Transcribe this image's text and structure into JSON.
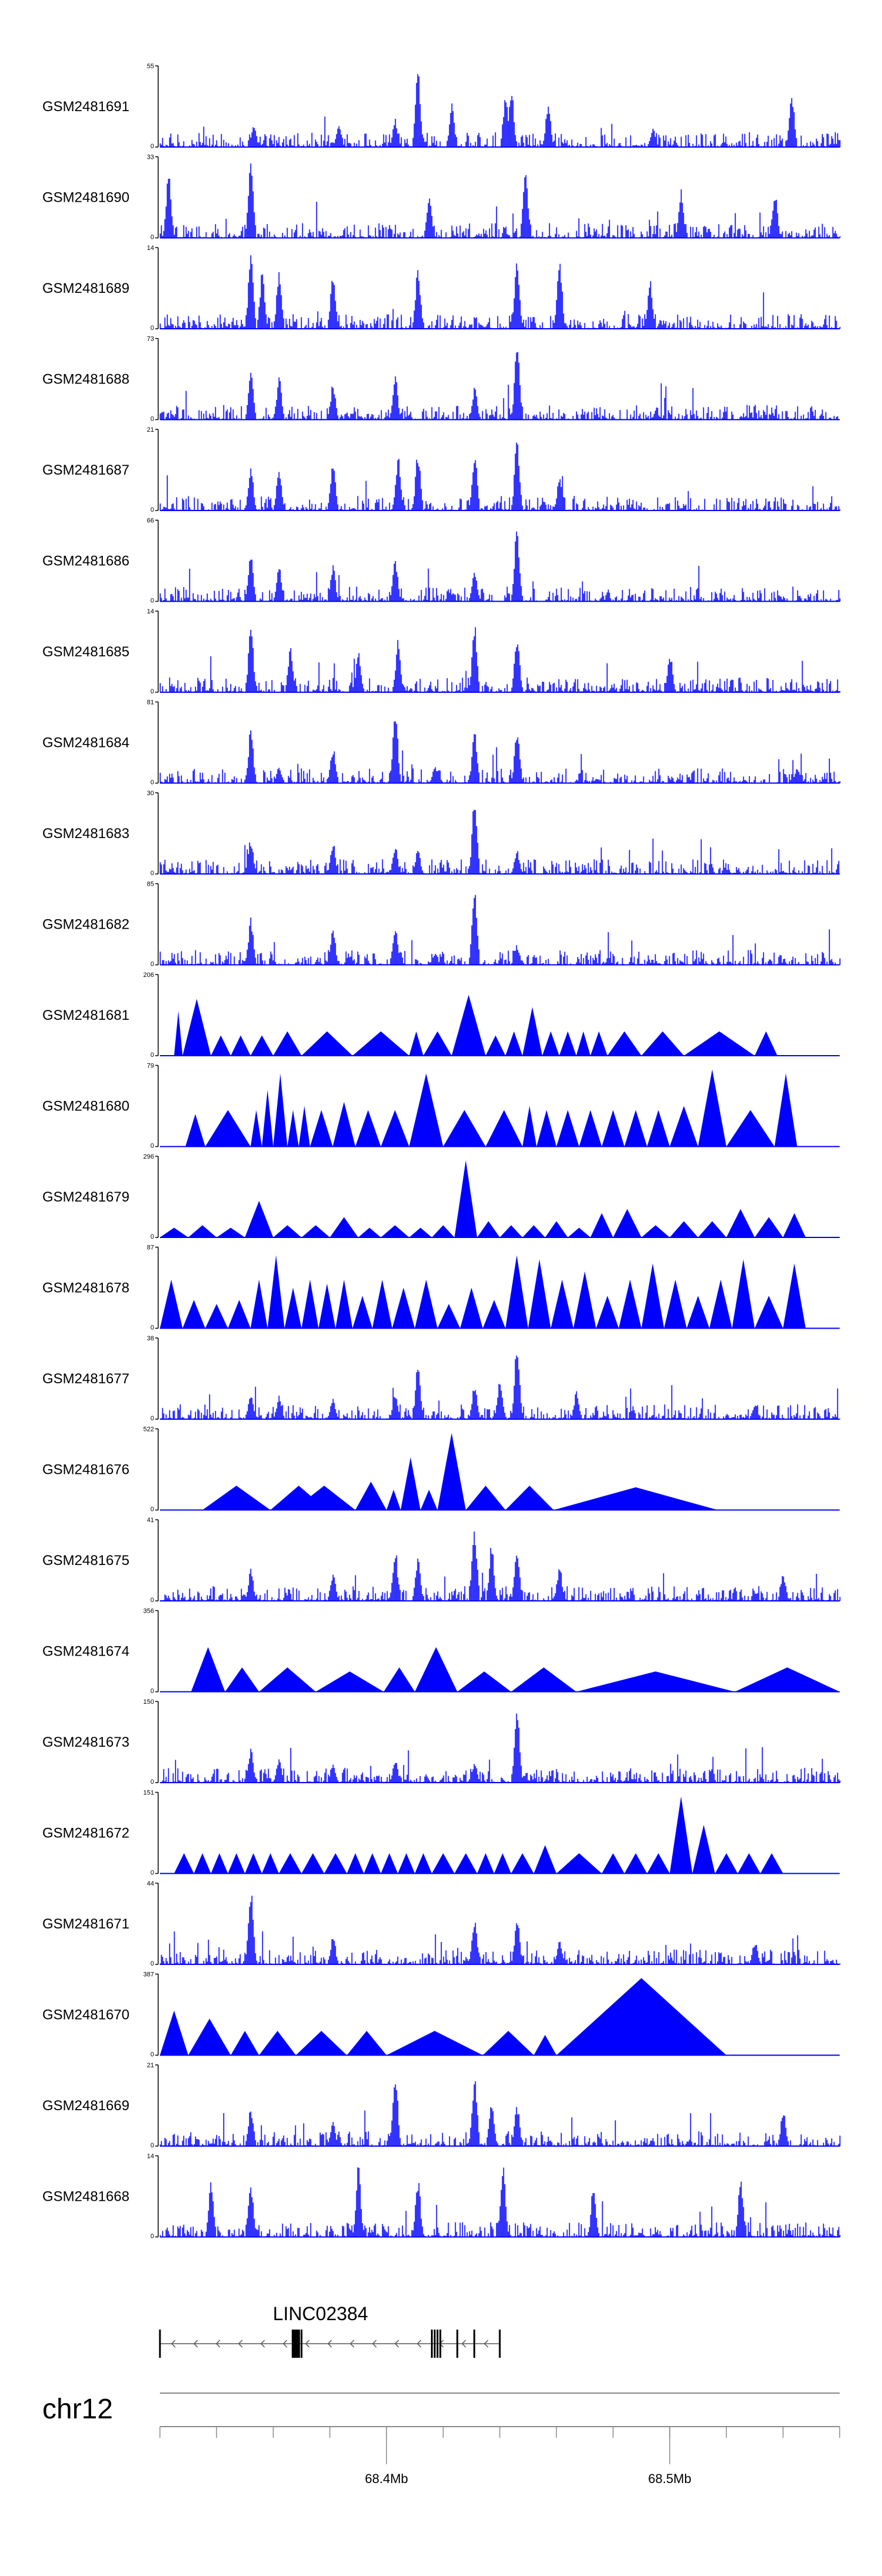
{
  "chart_data": {
    "type": "area",
    "title": "",
    "color": "#0000ff",
    "chromosome": "chr12",
    "xlim_mb": [
      68.32,
      68.56
    ],
    "x_tick_labels": [
      {
        "mb": 68.4,
        "label": "68.4Mb"
      },
      {
        "mb": 68.5,
        "label": "68.5Mb"
      }
    ],
    "minor_ticks_mb": [
      68.32,
      68.34,
      68.36,
      68.38,
      68.4,
      68.42,
      68.44,
      68.46,
      68.48,
      68.5,
      68.52,
      68.54,
      68.56
    ],
    "gene": {
      "name": "LINC02384",
      "strand": "-",
      "start_mb": 68.32,
      "end_mb": 68.44,
      "exon_mb": [
        68.32,
        68.368,
        68.37,
        68.416,
        68.417,
        68.418,
        68.419,
        68.425,
        68.431,
        68.44
      ]
    },
    "tracks": [
      {
        "name": "GSM2481691",
        "ymax": 55,
        "style": "dense",
        "peaks": [
          [
            68.353,
            0.3
          ],
          [
            68.383,
            0.3
          ],
          [
            68.403,
            0.35
          ],
          [
            68.411,
            0.95
          ],
          [
            68.423,
            0.55
          ],
          [
            68.442,
            0.72
          ],
          [
            68.444,
            0.75
          ],
          [
            68.457,
            0.55
          ],
          [
            68.543,
            0.7
          ],
          [
            68.494,
            0.25
          ]
        ]
      },
      {
        "name": "GSM2481690",
        "ymax": 33,
        "style": "dense",
        "peaks": [
          [
            68.323,
            0.8
          ],
          [
            68.352,
            0.95
          ],
          [
            68.415,
            0.6
          ],
          [
            68.449,
            0.9
          ],
          [
            68.504,
            0.6
          ],
          [
            68.537,
            0.6
          ]
        ]
      },
      {
        "name": "GSM2481689",
        "ymax": 14,
        "style": "dense",
        "peaks": [
          [
            68.352,
            0.95
          ],
          [
            68.356,
            0.7
          ],
          [
            68.362,
            0.75
          ],
          [
            68.381,
            0.7
          ],
          [
            68.411,
            0.8
          ],
          [
            68.446,
            0.9
          ],
          [
            68.461,
            0.95
          ],
          [
            68.493,
            0.6
          ]
        ]
      },
      {
        "name": "GSM2481688",
        "ymax": 73,
        "style": "dense",
        "peaks": [
          [
            68.352,
            0.6
          ],
          [
            68.362,
            0.55
          ],
          [
            68.381,
            0.45
          ],
          [
            68.403,
            0.55
          ],
          [
            68.431,
            0.4
          ],
          [
            68.446,
            0.95
          ]
        ]
      },
      {
        "name": "GSM2481687",
        "ymax": 21,
        "style": "dense",
        "peaks": [
          [
            68.352,
            0.55
          ],
          [
            68.362,
            0.55
          ],
          [
            68.381,
            0.6
          ],
          [
            68.404,
            0.7
          ],
          [
            68.411,
            0.75
          ],
          [
            68.431,
            0.75
          ],
          [
            68.446,
            0.9
          ],
          [
            68.461,
            0.4
          ]
        ]
      },
      {
        "name": "GSM2481686",
        "ymax": 66,
        "style": "dense",
        "peaks": [
          [
            68.352,
            0.6
          ],
          [
            68.362,
            0.45
          ],
          [
            68.381,
            0.45
          ],
          [
            68.403,
            0.55
          ],
          [
            68.431,
            0.4
          ],
          [
            68.446,
            0.95
          ]
        ]
      },
      {
        "name": "GSM2481685",
        "ymax": 14,
        "style": "dense",
        "peaks": [
          [
            68.352,
            0.85
          ],
          [
            68.366,
            0.55
          ],
          [
            68.39,
            0.5
          ],
          [
            68.404,
            0.65
          ],
          [
            68.431,
            0.85
          ],
          [
            68.446,
            0.75
          ],
          [
            68.5,
            0.5
          ]
        ]
      },
      {
        "name": "GSM2481684",
        "ymax": 81,
        "style": "dense",
        "peaks": [
          [
            68.352,
            0.7
          ],
          [
            68.362,
            0.2
          ],
          [
            68.381,
            0.45
          ],
          [
            68.403,
            0.95
          ],
          [
            68.417,
            0.2
          ],
          [
            68.431,
            0.7
          ],
          [
            68.446,
            0.7
          ],
          [
            68.545,
            0.2
          ]
        ]
      },
      {
        "name": "GSM2481683",
        "ymax": 30,
        "style": "dense",
        "peaks": [
          [
            68.352,
            0.45
          ],
          [
            68.381,
            0.4
          ],
          [
            68.403,
            0.35
          ],
          [
            68.411,
            0.3
          ],
          [
            68.431,
            0.95
          ],
          [
            68.446,
            0.3
          ]
        ]
      },
      {
        "name": "GSM2481682",
        "ymax": 85,
        "style": "dense",
        "peaks": [
          [
            68.352,
            0.6
          ],
          [
            68.381,
            0.45
          ],
          [
            68.403,
            0.5
          ],
          [
            68.417,
            0.15
          ],
          [
            68.431,
            0.95
          ],
          [
            68.446,
            0.25
          ]
        ]
      },
      {
        "name": "GSM2481681",
        "ymax": 206,
        "style": "triangles",
        "starts": [
          68.325,
          68.328,
          68.338,
          68.345,
          68.352,
          68.36,
          68.37,
          68.388,
          68.408,
          68.413,
          68.423,
          68.435,
          68.442,
          68.448,
          68.455,
          68.461,
          68.467,
          68.472,
          68.478,
          68.49,
          68.505,
          68.53
        ],
        "heights": [
          0.55,
          0.7,
          0.25,
          0.25,
          0.25,
          0.3,
          0.3,
          0.3,
          0.3,
          0.3,
          0.75,
          0.25,
          0.3,
          0.6,
          0.3,
          0.3,
          0.3,
          0.3,
          0.3,
          0.3,
          0.3,
          0.3
        ]
      },
      {
        "name": "GSM2481680",
        "ymax": 79,
        "style": "triangles",
        "starts": [
          68.329,
          68.336,
          68.352,
          68.356,
          68.36,
          68.365,
          68.369,
          68.373,
          68.381,
          68.389,
          68.398,
          68.408,
          68.42,
          68.435,
          68.448,
          68.453,
          68.46,
          68.468,
          68.476,
          68.484,
          68.492,
          68.5,
          68.51,
          68.52,
          68.537
        ],
        "heights": [
          0.4,
          0.45,
          0.45,
          0.7,
          0.9,
          0.45,
          0.5,
          0.45,
          0.55,
          0.45,
          0.45,
          0.9,
          0.45,
          0.45,
          0.5,
          0.45,
          0.45,
          0.45,
          0.45,
          0.45,
          0.45,
          0.5,
          0.95,
          0.45,
          0.9
        ]
      },
      {
        "name": "GSM2481679",
        "ymax": 296,
        "style": "triangles",
        "starts": [
          68.32,
          68.33,
          68.34,
          68.35,
          68.36,
          68.37,
          68.38,
          68.39,
          68.398,
          68.408,
          68.416,
          68.424,
          68.432,
          68.44,
          68.448,
          68.456,
          68.464,
          68.472,
          68.48,
          68.49,
          68.5,
          68.51,
          68.52,
          68.53,
          68.54
        ],
        "heights": [
          0.12,
          0.15,
          0.12,
          0.45,
          0.15,
          0.15,
          0.25,
          0.12,
          0.15,
          0.12,
          0.15,
          0.95,
          0.2,
          0.15,
          0.15,
          0.2,
          0.12,
          0.3,
          0.35,
          0.15,
          0.2,
          0.2,
          0.35,
          0.25,
          0.3
        ]
      },
      {
        "name": "GSM2481678",
        "ymax": 87,
        "style": "triangles",
        "starts": [
          68.32,
          68.328,
          68.336,
          68.344,
          68.352,
          68.358,
          68.364,
          68.37,
          68.376,
          68.382,
          68.388,
          68.395,
          68.402,
          68.41,
          68.418,
          68.426,
          68.434,
          68.442,
          68.45,
          68.458,
          68.466,
          68.474,
          68.482,
          68.49,
          68.498,
          68.506,
          68.514,
          68.522,
          68.53,
          68.54
        ],
        "heights": [
          0.6,
          0.35,
          0.3,
          0.35,
          0.6,
          0.9,
          0.5,
          0.6,
          0.55,
          0.6,
          0.4,
          0.6,
          0.5,
          0.6,
          0.3,
          0.5,
          0.35,
          0.9,
          0.85,
          0.6,
          0.7,
          0.4,
          0.6,
          0.8,
          0.6,
          0.4,
          0.6,
          0.85,
          0.4,
          0.8
        ]
      },
      {
        "name": "GSM2481677",
        "ymax": 38,
        "style": "dense",
        "peaks": [
          [
            68.352,
            0.35
          ],
          [
            68.362,
            0.3
          ],
          [
            68.381,
            0.25
          ],
          [
            68.403,
            0.3
          ],
          [
            68.411,
            0.7
          ],
          [
            68.431,
            0.45
          ],
          [
            68.44,
            0.5
          ],
          [
            68.446,
            0.95
          ],
          [
            68.467,
            0.35
          ],
          [
            68.53,
            0.2
          ]
        ]
      },
      {
        "name": "GSM2481676",
        "ymax": 522,
        "style": "triangles",
        "starts": [
          68.335,
          68.359,
          68.367,
          68.389,
          68.4,
          68.405,
          68.412,
          68.418,
          68.428,
          68.442,
          68.459
        ],
        "ends": [
          68.359,
          68.379,
          68.389,
          68.4,
          68.405,
          68.412,
          68.418,
          68.428,
          68.442,
          68.459,
          68.517
        ],
        "heights": [
          0.3,
          0.3,
          0.3,
          0.35,
          0.25,
          0.65,
          0.25,
          0.95,
          0.3,
          0.3,
          0.28
        ]
      },
      {
        "name": "GSM2481675",
        "ymax": 41,
        "style": "dense",
        "peaks": [
          [
            68.352,
            0.4
          ],
          [
            68.381,
            0.35
          ],
          [
            68.403,
            0.65
          ],
          [
            68.411,
            0.55
          ],
          [
            68.431,
            0.95
          ],
          [
            68.437,
            0.7
          ],
          [
            68.446,
            0.7
          ],
          [
            68.461,
            0.45
          ],
          [
            68.54,
            0.35
          ]
        ]
      },
      {
        "name": "GSM2481674",
        "ymax": 356,
        "style": "triangles",
        "starts": [
          68.331,
          68.343,
          68.355,
          68.375,
          68.399,
          68.41,
          68.425,
          68.444,
          68.467,
          68.523
        ],
        "ends": [
          68.343,
          68.355,
          68.375,
          68.399,
          68.41,
          68.425,
          68.444,
          68.467,
          68.523,
          68.56
        ],
        "heights": [
          0.55,
          0.3,
          0.3,
          0.25,
          0.3,
          0.55,
          0.25,
          0.3,
          0.25,
          0.3
        ]
      },
      {
        "name": "GSM2481673",
        "ymax": 150,
        "style": "dense",
        "peaks": [
          [
            68.352,
            0.45
          ],
          [
            68.362,
            0.3
          ],
          [
            68.381,
            0.25
          ],
          [
            68.403,
            0.3
          ],
          [
            68.431,
            0.25
          ],
          [
            68.446,
            0.95
          ]
        ]
      },
      {
        "name": "GSM2481672",
        "ymax": 151,
        "style": "triangles",
        "starts": [
          68.325,
          68.332,
          68.338,
          68.344,
          68.35,
          68.356,
          68.362,
          68.37,
          68.378,
          68.386,
          68.392,
          68.398,
          68.404,
          68.41,
          68.416,
          68.424,
          68.432,
          68.438,
          68.444,
          68.452,
          68.46,
          68.476,
          68.484,
          68.492,
          68.5,
          68.508,
          68.516,
          68.524,
          68.532
        ],
        "heights": [
          0.25,
          0.25,
          0.25,
          0.25,
          0.25,
          0.25,
          0.25,
          0.25,
          0.25,
          0.25,
          0.25,
          0.25,
          0.25,
          0.25,
          0.25,
          0.25,
          0.25,
          0.25,
          0.25,
          0.35,
          0.25,
          0.25,
          0.25,
          0.25,
          0.95,
          0.6,
          0.25,
          0.25,
          0.25
        ]
      },
      {
        "name": "GSM2481671",
        "ymax": 44,
        "style": "dense",
        "peaks": [
          [
            68.352,
            0.95
          ],
          [
            68.381,
            0.35
          ],
          [
            68.431,
            0.6
          ],
          [
            68.446,
            0.6
          ],
          [
            68.461,
            0.3
          ],
          [
            68.53,
            0.3
          ]
        ]
      },
      {
        "name": "GSM2481670",
        "ymax": 387,
        "style": "triangles",
        "starts": [
          68.32,
          68.33,
          68.345,
          68.355,
          68.368,
          68.386,
          68.4,
          68.434,
          68.452,
          68.46
        ],
        "ends": [
          68.33,
          68.345,
          68.355,
          68.368,
          68.386,
          68.4,
          68.434,
          68.452,
          68.46,
          68.52
        ],
        "heights": [
          0.55,
          0.45,
          0.3,
          0.3,
          0.3,
          0.3,
          0.3,
          0.3,
          0.25,
          0.95
        ]
      },
      {
        "name": "GSM2481669",
        "ymax": 21,
        "style": "dense",
        "peaks": [
          [
            68.352,
            0.5
          ],
          [
            68.381,
            0.3
          ],
          [
            68.403,
            0.95
          ],
          [
            68.431,
            0.9
          ],
          [
            68.437,
            0.6
          ],
          [
            68.446,
            0.5
          ],
          [
            68.54,
            0.5
          ]
        ]
      },
      {
        "name": "GSM2481668",
        "ymax": 14,
        "style": "dense",
        "peaks": [
          [
            68.338,
            0.75
          ],
          [
            68.352,
            0.7
          ],
          [
            68.39,
            0.9
          ],
          [
            68.411,
            0.75
          ],
          [
            68.441,
            0.9
          ],
          [
            68.473,
            0.65
          ],
          [
            68.525,
            0.75
          ]
        ]
      }
    ]
  }
}
